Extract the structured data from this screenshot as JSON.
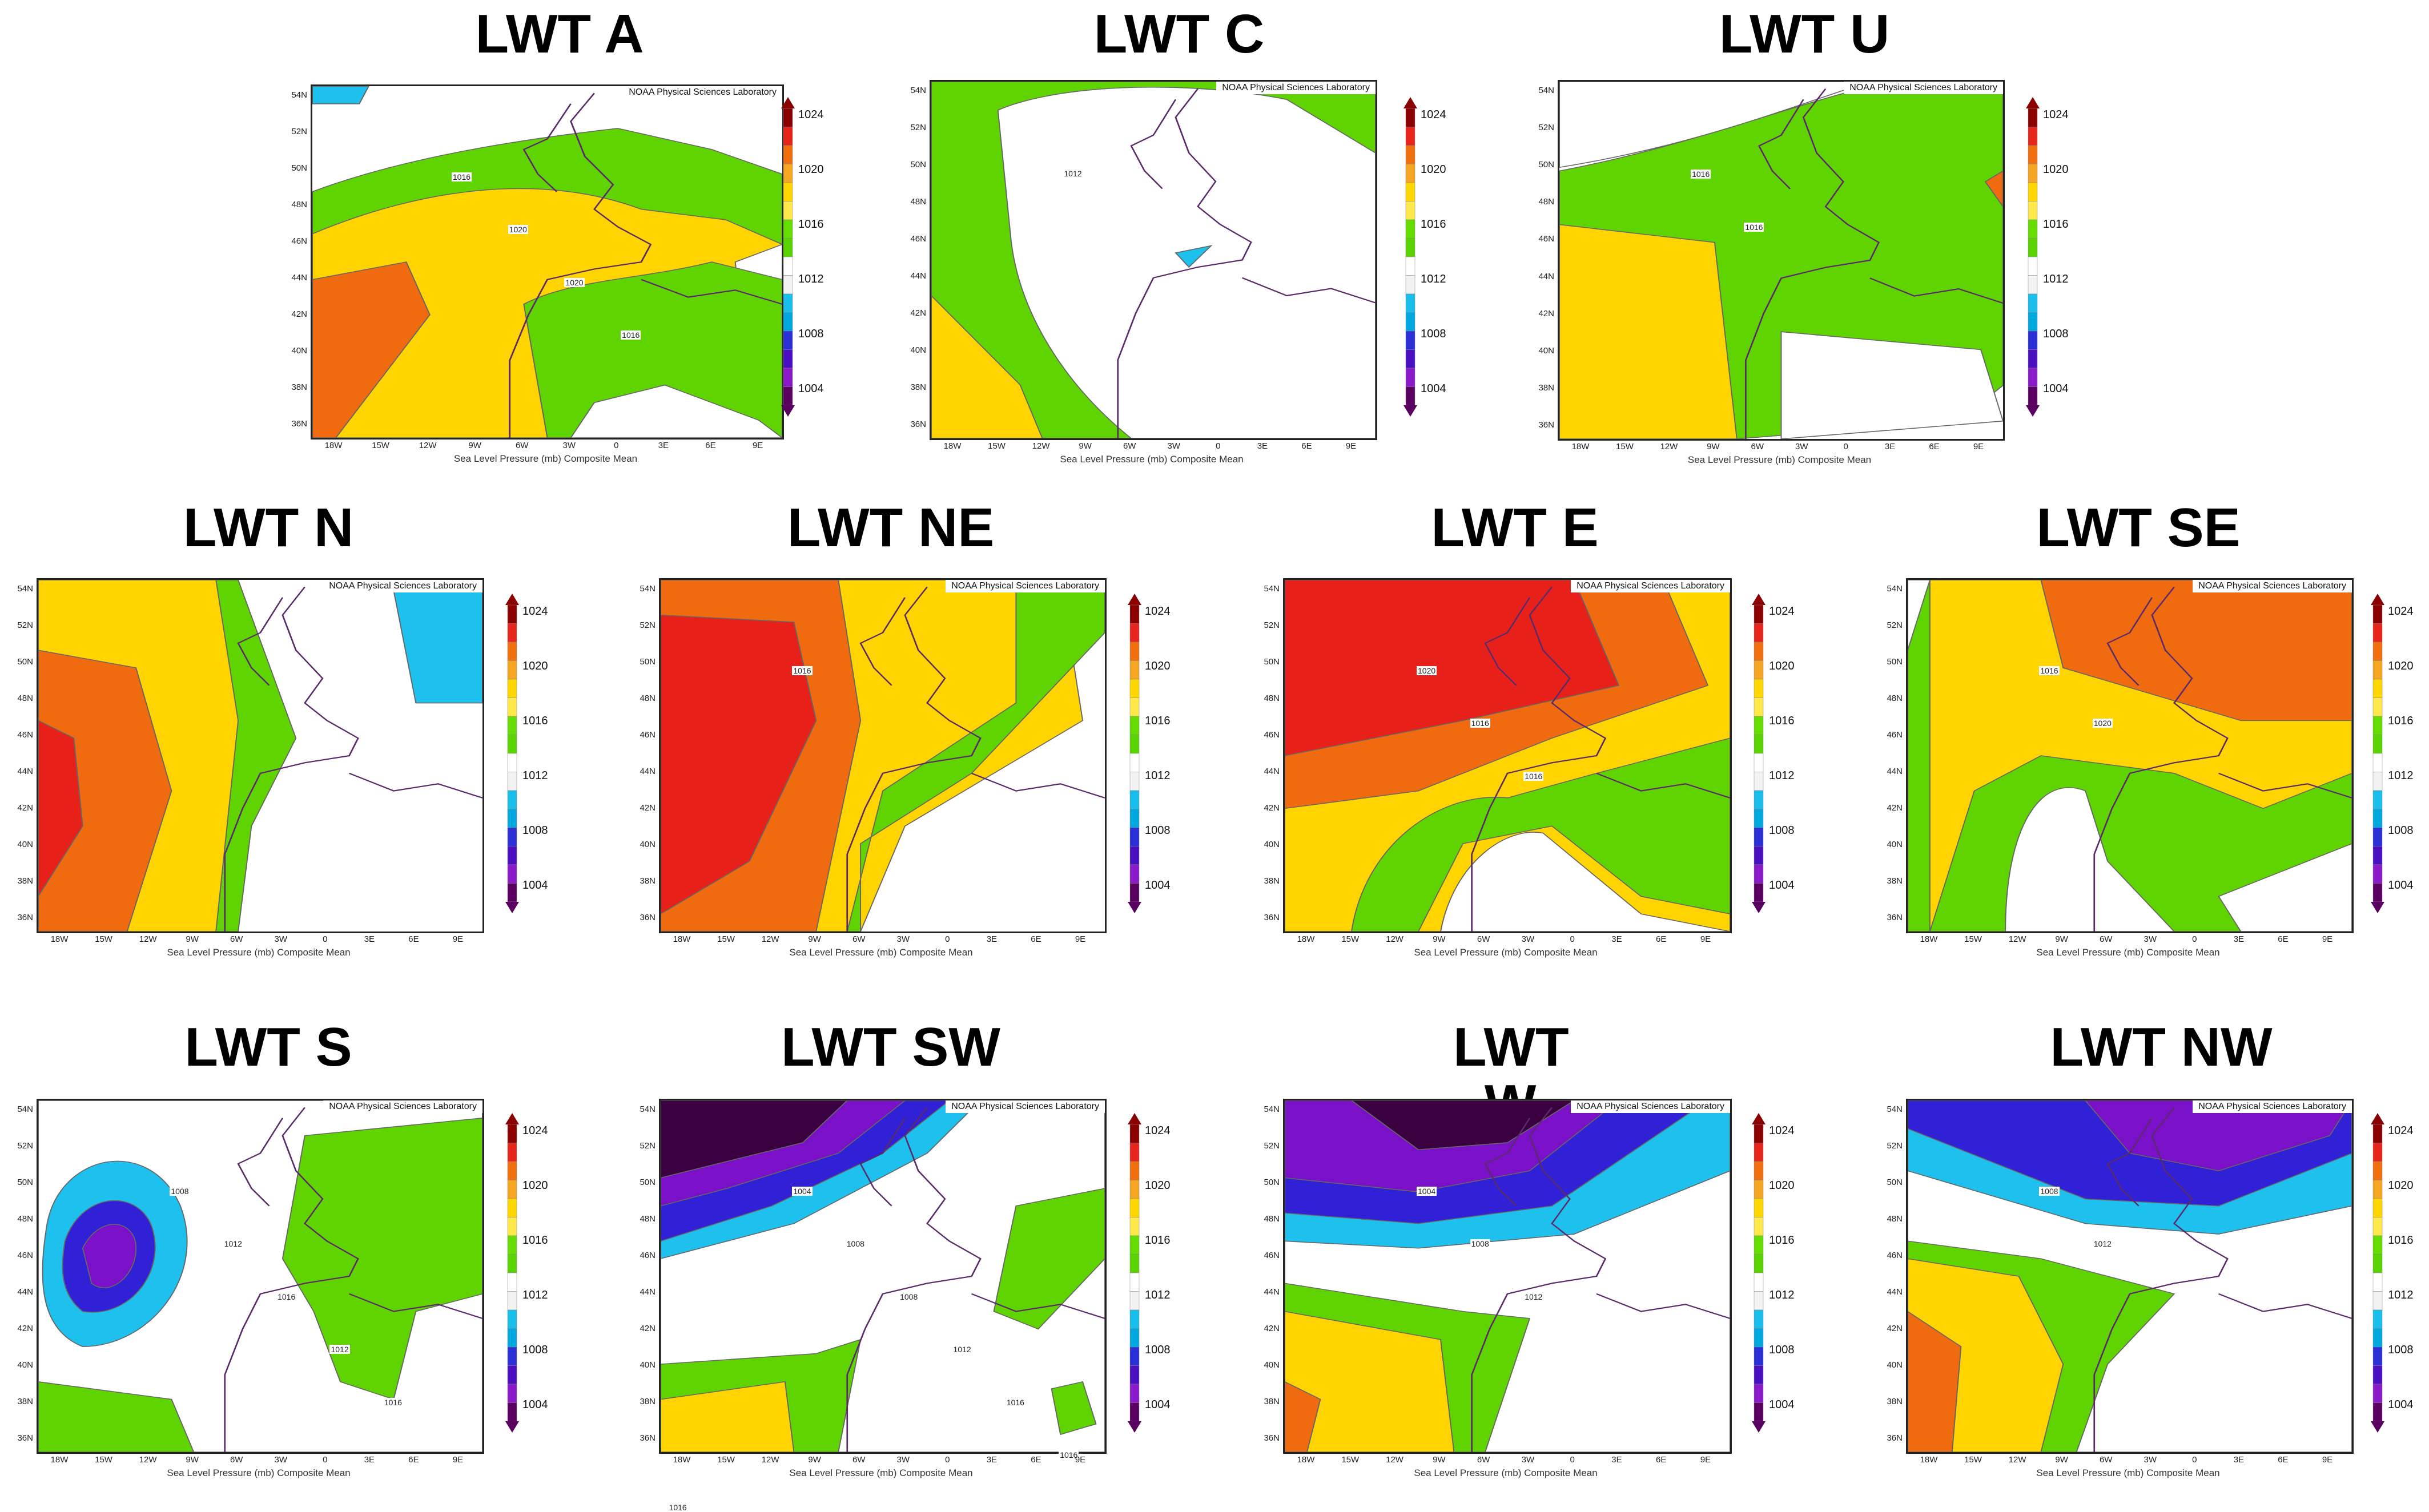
{
  "common": {
    "source": "NOAA Physical Sciences Laboratory",
    "caption": "Sea Level Pressure (mb) Composite Mean",
    "yticks": [
      "54N",
      "52N",
      "50N",
      "48N",
      "46N",
      "44N",
      "42N",
      "40N",
      "38N",
      "36N"
    ],
    "xticks": [
      "18W",
      "15W",
      "12W",
      "9W",
      "6W",
      "3W",
      "0",
      "3E",
      "6E",
      "9E"
    ],
    "colorbar": {
      "labels": [
        "1024",
        "1020",
        "1016",
        "1012",
        "1008",
        "1004"
      ],
      "colors": [
        "#8b0000",
        "#e8251c",
        "#f07010",
        "#f5a623",
        "#ffd700",
        "#ffe84a",
        "#66dd00",
        "#5ad400",
        "#ffffff",
        "#f2f2f2",
        "#19bfea",
        "#00a8e0",
        "#2a2fd6",
        "#4a0fc0",
        "#8a19c9",
        "#5a0060"
      ]
    }
  },
  "panels": [
    {
      "id": "A",
      "title": "LWT A",
      "contours": [
        "1016",
        "1020",
        "1020",
        "1016"
      ]
    },
    {
      "id": "C",
      "title": "LWT C",
      "contours": [
        "1012"
      ]
    },
    {
      "id": "U",
      "title": "LWT U",
      "contours": [
        "1016",
        "1016"
      ]
    },
    {
      "id": "N",
      "title": "LWT N",
      "contours": []
    },
    {
      "id": "NE",
      "title": "LWT NE",
      "contours": [
        "1016"
      ]
    },
    {
      "id": "E",
      "title": "LWT E",
      "contours": [
        "1020",
        "1016",
        "1016"
      ]
    },
    {
      "id": "SE",
      "title": "LWT SE",
      "contours": [
        "1016",
        "1020"
      ]
    },
    {
      "id": "S",
      "title": "LWT S",
      "contours": [
        "1008",
        "1012",
        "1016",
        "1012",
        "1016"
      ]
    },
    {
      "id": "SW",
      "title": "LWT SW",
      "contours": [
        "1004",
        "1008",
        "1008",
        "1012",
        "1016",
        "1016",
        "1016"
      ]
    },
    {
      "id": "W",
      "title": "LWT W",
      "contours": [
        "1004",
        "1008",
        "1012"
      ]
    },
    {
      "id": "NW",
      "title": "LWT NW",
      "contours": [
        "1008",
        "1012"
      ]
    }
  ]
}
